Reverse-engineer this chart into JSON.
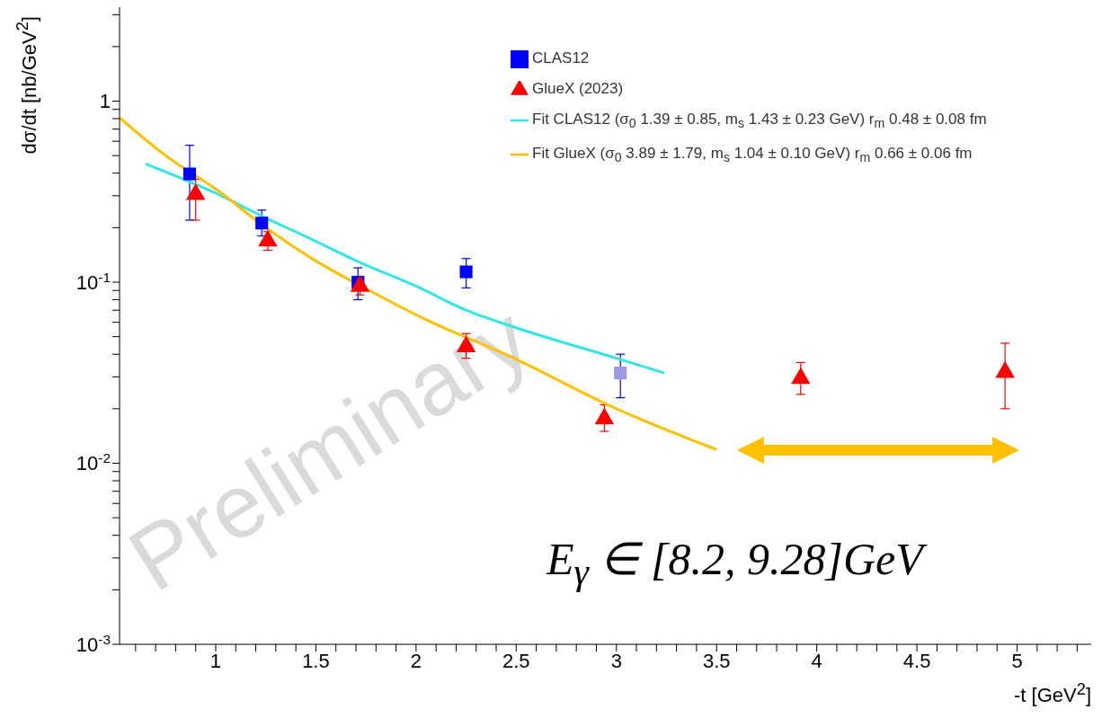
{
  "chart_data": {
    "type": "scatter",
    "xlabel": "-t [GeV$^{2}$]",
    "ylabel": "dσ/dt [nb/GeV$^{2}$]",
    "log": "y",
    "grid": false,
    "legend": "top right",
    "xlim": [
      0.52,
      5.37
    ],
    "ylim": [
      0.001,
      3.3
    ],
    "xticks": [
      {
        "value": 0.6,
        "label": null
      },
      {
        "value": 0.7,
        "label": null
      },
      {
        "value": 0.8,
        "label": null
      },
      {
        "value": 0.9,
        "label": null
      },
      1,
      {
        "value": 1.1,
        "label": null
      },
      {
        "value": 1.2,
        "label": null
      },
      {
        "value": 1.3,
        "label": null
      },
      {
        "value": 1.4,
        "label": null
      },
      1.5,
      {
        "value": 1.6,
        "label": null
      },
      {
        "value": 1.7,
        "label": null
      },
      {
        "value": 1.8,
        "label": null
      },
      {
        "value": 1.9,
        "label": null
      },
      2,
      {
        "value": 2.1,
        "label": null
      },
      {
        "value": 2.2,
        "label": null
      },
      {
        "value": 2.3,
        "label": null
      },
      {
        "value": 2.4,
        "label": null
      },
      2.5,
      {
        "value": 2.6,
        "label": null
      },
      {
        "value": 2.7,
        "label": null
      },
      {
        "value": 2.8,
        "label": null
      },
      {
        "value": 2.9,
        "label": null
      },
      3,
      {
        "value": 3.1,
        "label": null
      },
      {
        "value": 3.2,
        "label": null
      },
      {
        "value": 3.3,
        "label": null
      },
      {
        "value": 3.4,
        "label": null
      },
      3.5,
      {
        "value": 3.6,
        "label": null
      },
      {
        "value": 3.7,
        "label": null
      },
      {
        "value": 3.8,
        "label": null
      },
      {
        "value": 3.9,
        "label": null
      },
      4,
      {
        "value": 4.1,
        "label": null
      },
      {
        "value": 4.2,
        "label": null
      },
      {
        "value": 4.3,
        "label": null
      },
      {
        "value": 4.4,
        "label": null
      },
      4.5,
      {
        "value": 4.6,
        "label": null
      },
      {
        "value": 4.7,
        "label": null
      },
      {
        "value": 4.8,
        "label": null
      },
      {
        "value": 4.9,
        "label": null
      },
      5,
      {
        "value": 5.1,
        "label": null
      },
      {
        "value": 5.2,
        "label": null
      },
      {
        "value": 5.3,
        "label": null
      }
    ],
    "yticks": [
      {
        "value": 0.001,
        "label": "10$^{-3}$"
      },
      {
        "value": 0.002,
        "label": null
      },
      {
        "value": 0.003,
        "label": null
      },
      {
        "value": 0.004,
        "label": null
      },
      {
        "value": 0.005,
        "label": null
      },
      {
        "value": 0.006,
        "label": null
      },
      {
        "value": 0.007,
        "label": null
      },
      {
        "value": 0.008,
        "label": null
      },
      {
        "value": 0.009,
        "label": null
      },
      {
        "value": 0.01,
        "label": "10$^{-2}$"
      },
      {
        "value": 0.02,
        "label": null
      },
      {
        "value": 0.03,
        "label": null
      },
      {
        "value": 0.04,
        "label": null
      },
      {
        "value": 0.05,
        "label": null
      },
      {
        "value": 0.06,
        "label": null
      },
      {
        "value": 0.07,
        "label": null
      },
      {
        "value": 0.08,
        "label": null
      },
      {
        "value": 0.09,
        "label": null
      },
      {
        "value": 0.1,
        "label": "10$^{-1}$"
      },
      {
        "value": 0.2,
        "label": null
      },
      {
        "value": 0.3,
        "label": null
      },
      {
        "value": 0.4,
        "label": null
      },
      {
        "value": 0.5,
        "label": null
      },
      {
        "value": 0.6,
        "label": null
      },
      {
        "value": 0.7,
        "label": null
      },
      {
        "value": 0.8,
        "label": null
      },
      {
        "value": 0.9,
        "label": null
      },
      1,
      {
        "value": 2,
        "label": null
      },
      {
        "value": 3,
        "label": null
      }
    ],
    "annotations": [
      "Preliminary",
      "E$_{γ}$ ∈ [8.2, 9.28]GeV"
    ],
    "series": [
      {
        "name": "CLAS12",
        "marker": "square",
        "color": "#0000ff",
        "colors": [
          "#0000ff",
          "#0000ff",
          "#0000ff",
          "#0000ff",
          "#9a9ae6"
        ],
        "x": [
          0.87,
          1.23,
          1.71,
          2.25,
          3.02
        ],
        "values": [
          0.396,
          0.212,
          0.1,
          0.114,
          0.0315
        ],
        "errors": [
          [
            0.22,
            0.57
          ],
          [
            0.18,
            0.25
          ],
          [
            0.08,
            0.12
          ],
          [
            0.093,
            0.135
          ],
          [
            0.023,
            0.04
          ]
        ]
      },
      {
        "name": "GlueX (2023)",
        "marker": "triangle",
        "color": "#ff0000",
        "x": [
          0.9,
          1.26,
          1.72,
          2.25,
          2.94,
          3.92,
          4.94
        ],
        "values": [
          0.305,
          0.169,
          0.095,
          0.044,
          0.0176,
          0.0294,
          0.0318
        ],
        "errors": [
          [
            0.22,
            0.37
          ],
          [
            0.15,
            0.19
          ],
          [
            0.085,
            0.105
          ],
          [
            0.038,
            0.052
          ],
          [
            0.015,
            0.021
          ],
          [
            0.024,
            0.036
          ],
          [
            0.02,
            0.046
          ]
        ]
      },
      {
        "name": "Fit CLAS12 (σ$_{0}$ 1.39 ± 0.85, m$_{s}$ 1.43 ± 0.23 GeV) r$_{m}$ 0.48 ± 0.08 fm",
        "type": "line",
        "marker": "none",
        "line_style": "solid",
        "color": "#33e6e6",
        "x": [
          0.65,
          1.0,
          1.23,
          1.5,
          1.71,
          2.0,
          2.25,
          2.5,
          3.0,
          3.24
        ],
        "values": [
          0.45,
          0.31,
          0.232,
          0.168,
          0.13,
          0.095,
          0.07,
          0.056,
          0.038,
          0.0315
        ]
      },
      {
        "name": "Fit GlueX (σ$_{0}$ 3.89 ± 1.79, m$_{s}$ 1.04 ± 0.10 GeV) r$_{m}$ 0.66 ± 0.06 fm",
        "type": "line",
        "marker": "none",
        "line_style": "solid",
        "color": "#ffc000",
        "x": [
          0.52,
          0.75,
          1.0,
          1.25,
          1.5,
          1.75,
          2.0,
          2.5,
          3.0,
          3.5
        ],
        "values": [
          0.81,
          0.5,
          0.327,
          0.2,
          0.131,
          0.092,
          0.066,
          0.0375,
          0.02,
          0.0119
        ]
      }
    ]
  }
}
